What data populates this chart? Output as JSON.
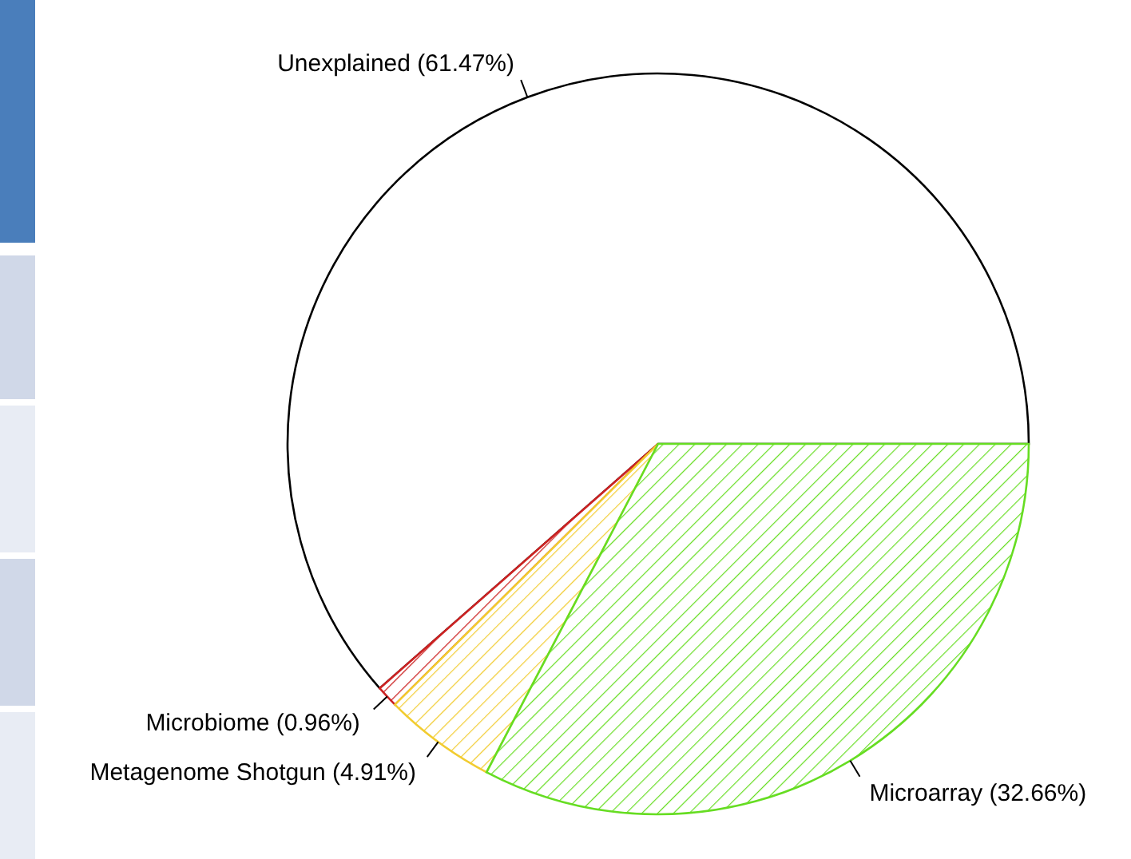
{
  "chart_data": {
    "type": "pie",
    "categories": [
      "Microarray (32.66%)",
      "Metagenome Shotgun (4.91%)",
      "Microbiome (0.96%)",
      "Unexplained (61.47%)"
    ],
    "values": [
      32.66,
      4.91,
      0.96,
      61.47
    ],
    "colors": [
      "#66dd22",
      "#f2cc30",
      "#cc2222",
      "#000000"
    ]
  }
}
